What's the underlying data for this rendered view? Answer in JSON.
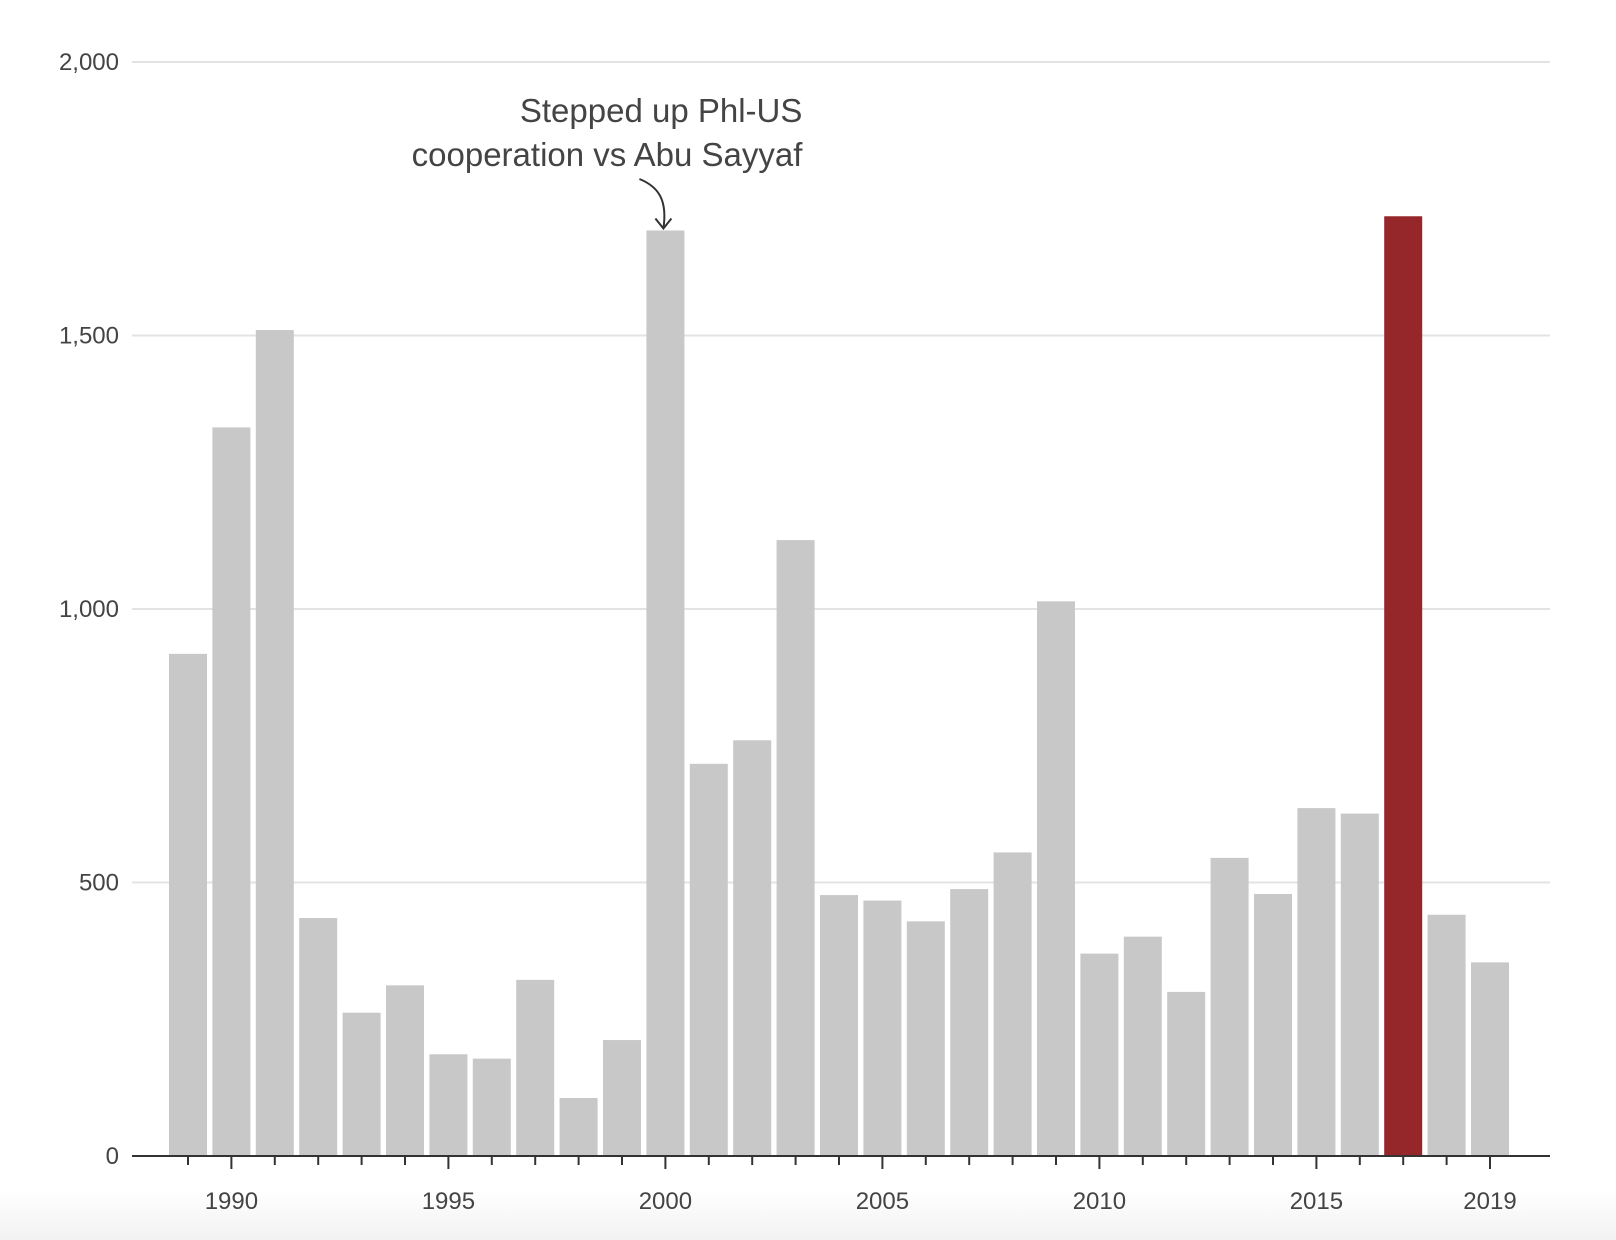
{
  "chart_data": {
    "type": "bar",
    "title": "",
    "xlabel": "",
    "ylabel": "",
    "ylim": [
      0,
      2000
    ],
    "yticks": [
      0,
      500,
      1000,
      1500,
      2000
    ],
    "ytick_labels": [
      "0",
      "500",
      "1,000",
      "1,500",
      "2,000"
    ],
    "xtick_years": [
      1990,
      1995,
      2000,
      2005,
      2010,
      2015,
      2019
    ],
    "grid": true,
    "categories": [
      "1989",
      "1990",
      "1991",
      "1992",
      "1993",
      "1994",
      "1995",
      "1996",
      "1997",
      "1998",
      "1999",
      "2000",
      "2001",
      "2002",
      "2003",
      "2004",
      "2005",
      "2006",
      "2007",
      "2008",
      "2009",
      "2010",
      "2011",
      "2012",
      "2013",
      "2014",
      "2015",
      "2016",
      "2017",
      "2018",
      "2019"
    ],
    "values": [
      918,
      1332,
      1510,
      435,
      262,
      312,
      186,
      178,
      322,
      106,
      212,
      1692,
      717,
      760,
      1126,
      477,
      467,
      429,
      488,
      555,
      1014,
      370,
      401,
      300,
      545,
      479,
      636,
      626,
      1718,
      441,
      354
    ],
    "colors": {
      "default": "#c8c8c8",
      "highlight": "#95272b"
    },
    "highlight_category": "2017",
    "annotations": [
      {
        "category": "2000",
        "lines": [
          "Stepped up Phl-US",
          "cooperation vs Abu Sayyaf"
        ]
      }
    ]
  }
}
